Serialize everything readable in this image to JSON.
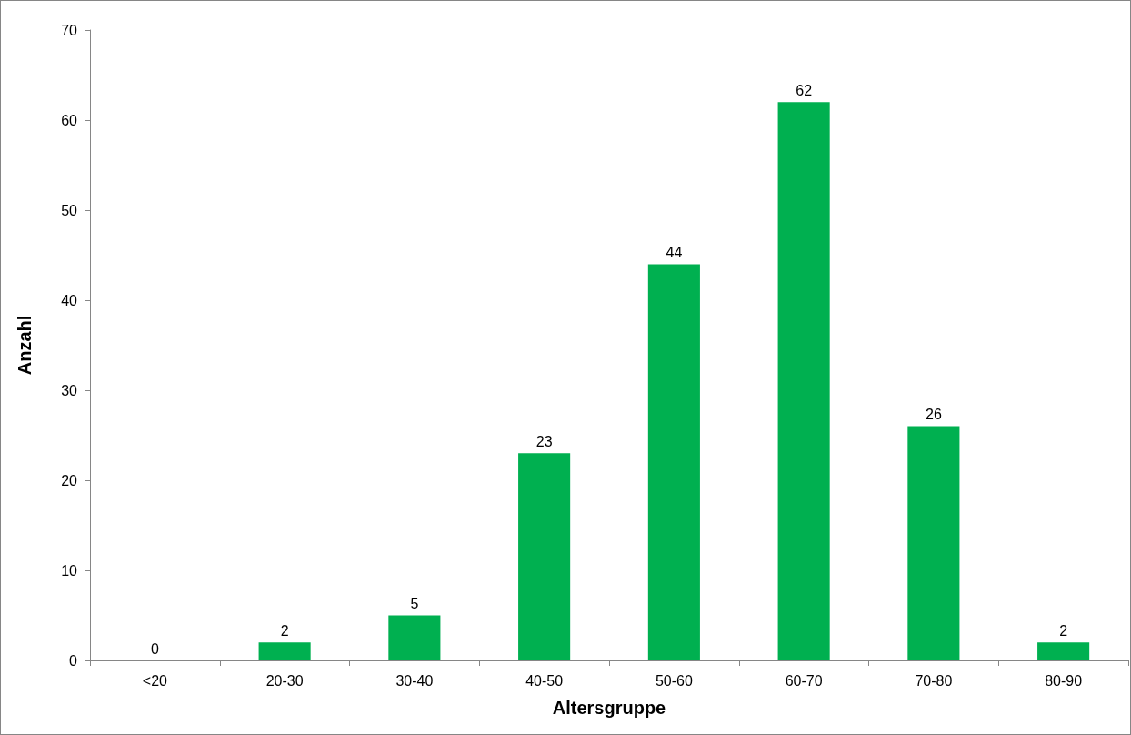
{
  "chart_data": {
    "type": "bar",
    "xlabel": "Altersgruppe",
    "ylabel": "Anzahl",
    "categories": [
      "<20",
      "20-30",
      "30-40",
      "40-50",
      "50-60",
      "60-70",
      "70-80",
      "80-90"
    ],
    "values": [
      0,
      2,
      5,
      23,
      44,
      62,
      26,
      2
    ],
    "color": "#00b050",
    "ylim": [
      0,
      70
    ],
    "yticks": [
      0,
      10,
      20,
      30,
      40,
      50,
      60,
      70
    ],
    "grid": false,
    "data_labels": true
  }
}
